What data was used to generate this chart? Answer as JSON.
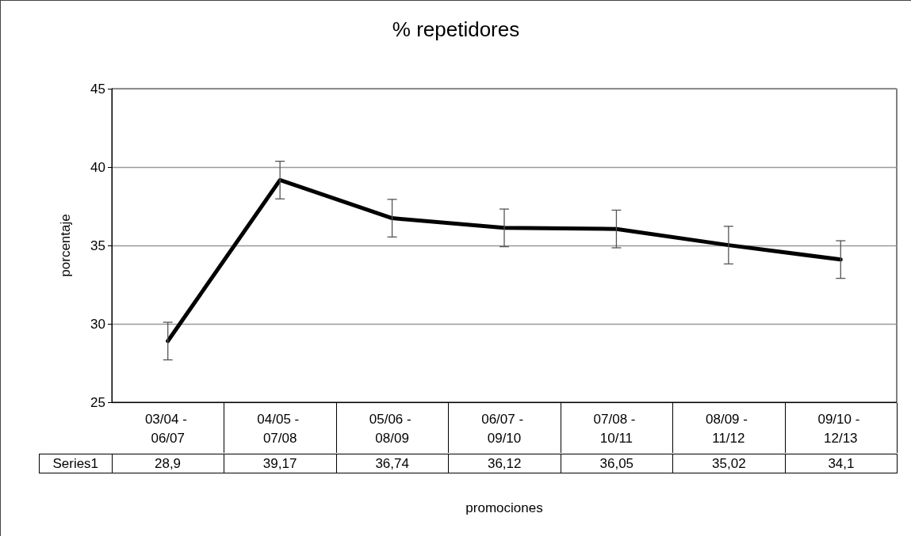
{
  "chart_data": {
    "type": "line",
    "title": "% repetidores",
    "ylabel": "porcentaje",
    "xlabel": "promociones",
    "categories": [
      "03/04 - 06/07",
      "04/05 - 07/08",
      "05/06 - 08/09",
      "06/07 - 09/10",
      "07/08 - 10/11",
      "08/09 - 11/12",
      "09/10 - 12/13"
    ],
    "series": [
      {
        "name": "Series1",
        "color": "#000000",
        "values": [
          28.9,
          39.17,
          36.74,
          36.12,
          36.05,
          35.02,
          34.1
        ],
        "value_labels": [
          "28,9",
          "39,17",
          "36,74",
          "36,12",
          "36,05",
          "35,02",
          "34,1"
        ],
        "errors": [
          1.2,
          1.2,
          1.2,
          1.2,
          1.2,
          1.2,
          1.2
        ]
      }
    ],
    "ylim": [
      25,
      45
    ],
    "yticks": [
      25,
      30,
      35,
      40,
      45
    ],
    "grid": "y",
    "legend": "bottom left",
    "marker": "none",
    "line_style": "solid"
  }
}
